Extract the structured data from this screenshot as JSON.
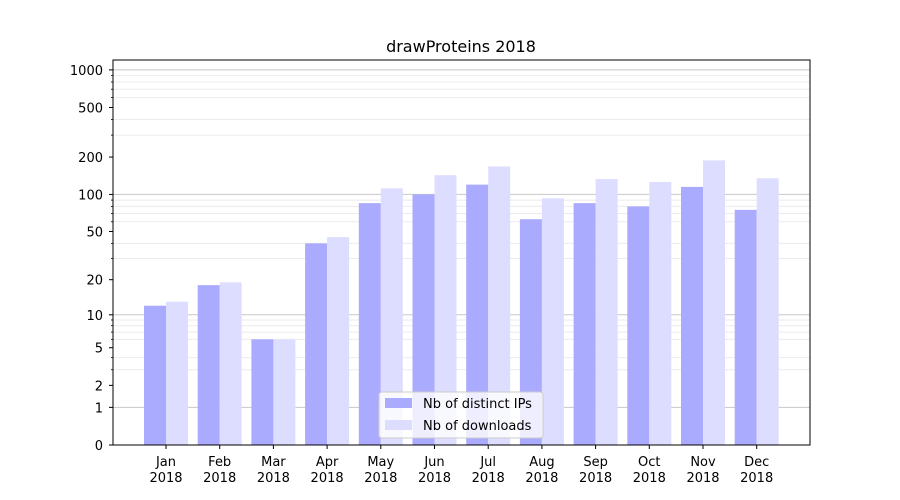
{
  "chart_data": {
    "type": "bar",
    "title": "drawProteins 2018",
    "xlabel": "",
    "ylabel": "",
    "yscale": "log(1+y)",
    "ylim": [
      0,
      1200
    ],
    "grid": "horizontal major and minor lines",
    "categories": [
      [
        "Jan",
        "2018"
      ],
      [
        "Feb",
        "2018"
      ],
      [
        "Mar",
        "2018"
      ],
      [
        "Apr",
        "2018"
      ],
      [
        "May",
        "2018"
      ],
      [
        "Jun",
        "2018"
      ],
      [
        "Jul",
        "2018"
      ],
      [
        "Aug",
        "2018"
      ],
      [
        "Sep",
        "2018"
      ],
      [
        "Oct",
        "2018"
      ],
      [
        "Nov",
        "2018"
      ],
      [
        "Dec",
        "2018"
      ]
    ],
    "yticks": [
      0,
      1,
      2,
      5,
      10,
      20,
      50,
      100,
      200,
      500,
      1000
    ],
    "ytick_labels": [
      "0",
      "1",
      "2",
      "5",
      "10",
      "20",
      "50",
      "100",
      "200",
      "500",
      "1000"
    ],
    "series": [
      {
        "name": "Nb of distinct IPs",
        "color": "#aaaaff",
        "values": [
          12,
          18,
          6,
          40,
          85,
          100,
          120,
          63,
          85,
          80,
          115,
          75
        ]
      },
      {
        "name": "Nb of downloads",
        "color": "#ddddff",
        "values": [
          13,
          19,
          6,
          45,
          112,
          143,
          168,
          93,
          133,
          126,
          188,
          135
        ]
      }
    ],
    "legend": {
      "position": "lower center"
    }
  }
}
